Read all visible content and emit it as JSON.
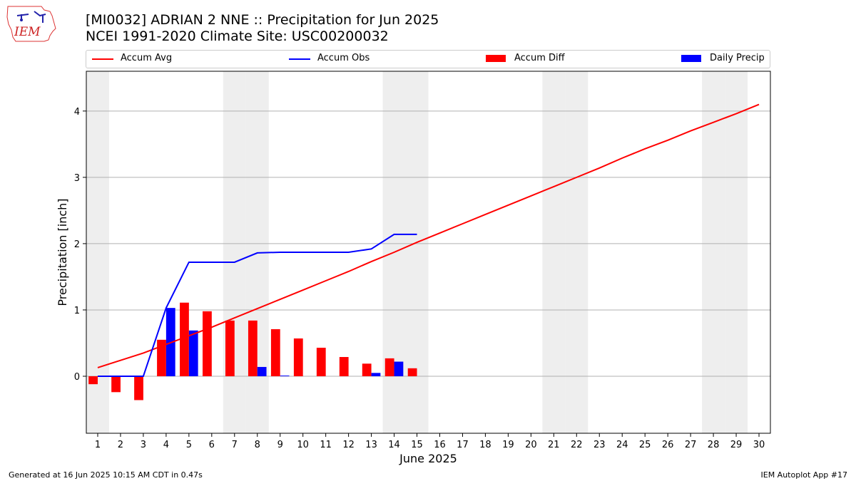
{
  "header": {
    "title_line1": "[MI0032] ADRIAN 2 NNE :: Precipitation for Jun 2025",
    "title_line2": "NCEI 1991-2020 Climate Site: USC00200032",
    "logo_text": "IEM"
  },
  "legend": {
    "accum_avg": "Accum Avg",
    "accum_obs": "Accum Obs",
    "accum_diff": "Accum Diff",
    "daily_precip": "Daily Precip"
  },
  "footer": {
    "generated": "Generated at 16 Jun 2025 10:15 AM CDT in 0.47s",
    "app": "IEM Autoplot App #17"
  },
  "colors": {
    "avg": "#ff0000",
    "obs": "#0000ff",
    "diff": "#ff0000",
    "daily": "#0000ff",
    "weekend_shade": "#eeeeee",
    "grid": "#b0b0b0"
  },
  "chart_data": {
    "type": "bar",
    "xlabel": "June 2025",
    "ylabel": "Precipitation [inch]",
    "xlim": [
      0.5,
      30.5
    ],
    "ylim": [
      -0.86,
      4.6
    ],
    "grid": true,
    "legend_position": "top",
    "x_ticks": [
      1,
      2,
      3,
      4,
      5,
      6,
      7,
      8,
      9,
      10,
      11,
      12,
      13,
      14,
      15,
      16,
      17,
      18,
      19,
      20,
      21,
      22,
      23,
      24,
      25,
      26,
      27,
      28,
      29,
      30
    ],
    "y_ticks": [
      0,
      1,
      2,
      3,
      4
    ],
    "weekend_days": [
      1,
      7,
      8,
      14,
      15,
      21,
      22,
      28,
      29
    ],
    "days": [
      1,
      2,
      3,
      4,
      5,
      6,
      7,
      8,
      9,
      10,
      11,
      12,
      13,
      14,
      15,
      16,
      17,
      18,
      19,
      20,
      21,
      22,
      23,
      24,
      25,
      26,
      27,
      28,
      29,
      30
    ],
    "series": [
      {
        "name": "Accum Avg",
        "kind": "line",
        "values": [
          0.13,
          0.24,
          0.35,
          0.48,
          0.61,
          0.74,
          0.88,
          1.02,
          1.16,
          1.3,
          1.44,
          1.58,
          1.73,
          1.87,
          2.02,
          2.16,
          2.3,
          2.44,
          2.58,
          2.72,
          2.86,
          3.0,
          3.14,
          3.29,
          3.43,
          3.56,
          3.7,
          3.83,
          3.96,
          4.1
        ]
      },
      {
        "name": "Accum Obs",
        "kind": "line",
        "values": [
          0.0,
          0.0,
          0.0,
          1.03,
          1.72,
          1.72,
          1.72,
          1.86,
          1.87,
          1.87,
          1.87,
          1.87,
          1.92,
          2.14,
          2.14
        ]
      },
      {
        "name": "Accum Diff",
        "kind": "bar",
        "values": [
          -0.12,
          -0.24,
          -0.36,
          0.55,
          1.11,
          0.98,
          0.84,
          0.84,
          0.71,
          0.57,
          0.43,
          0.29,
          0.19,
          0.27,
          0.12
        ]
      },
      {
        "name": "Daily Precip",
        "kind": "bar",
        "values": [
          0.0,
          0.0,
          0.0,
          1.03,
          0.69,
          0.0,
          0.0,
          0.14,
          0.01,
          0.0,
          0.0,
          0.0,
          0.05,
          0.22,
          0.0
        ]
      }
    ]
  }
}
